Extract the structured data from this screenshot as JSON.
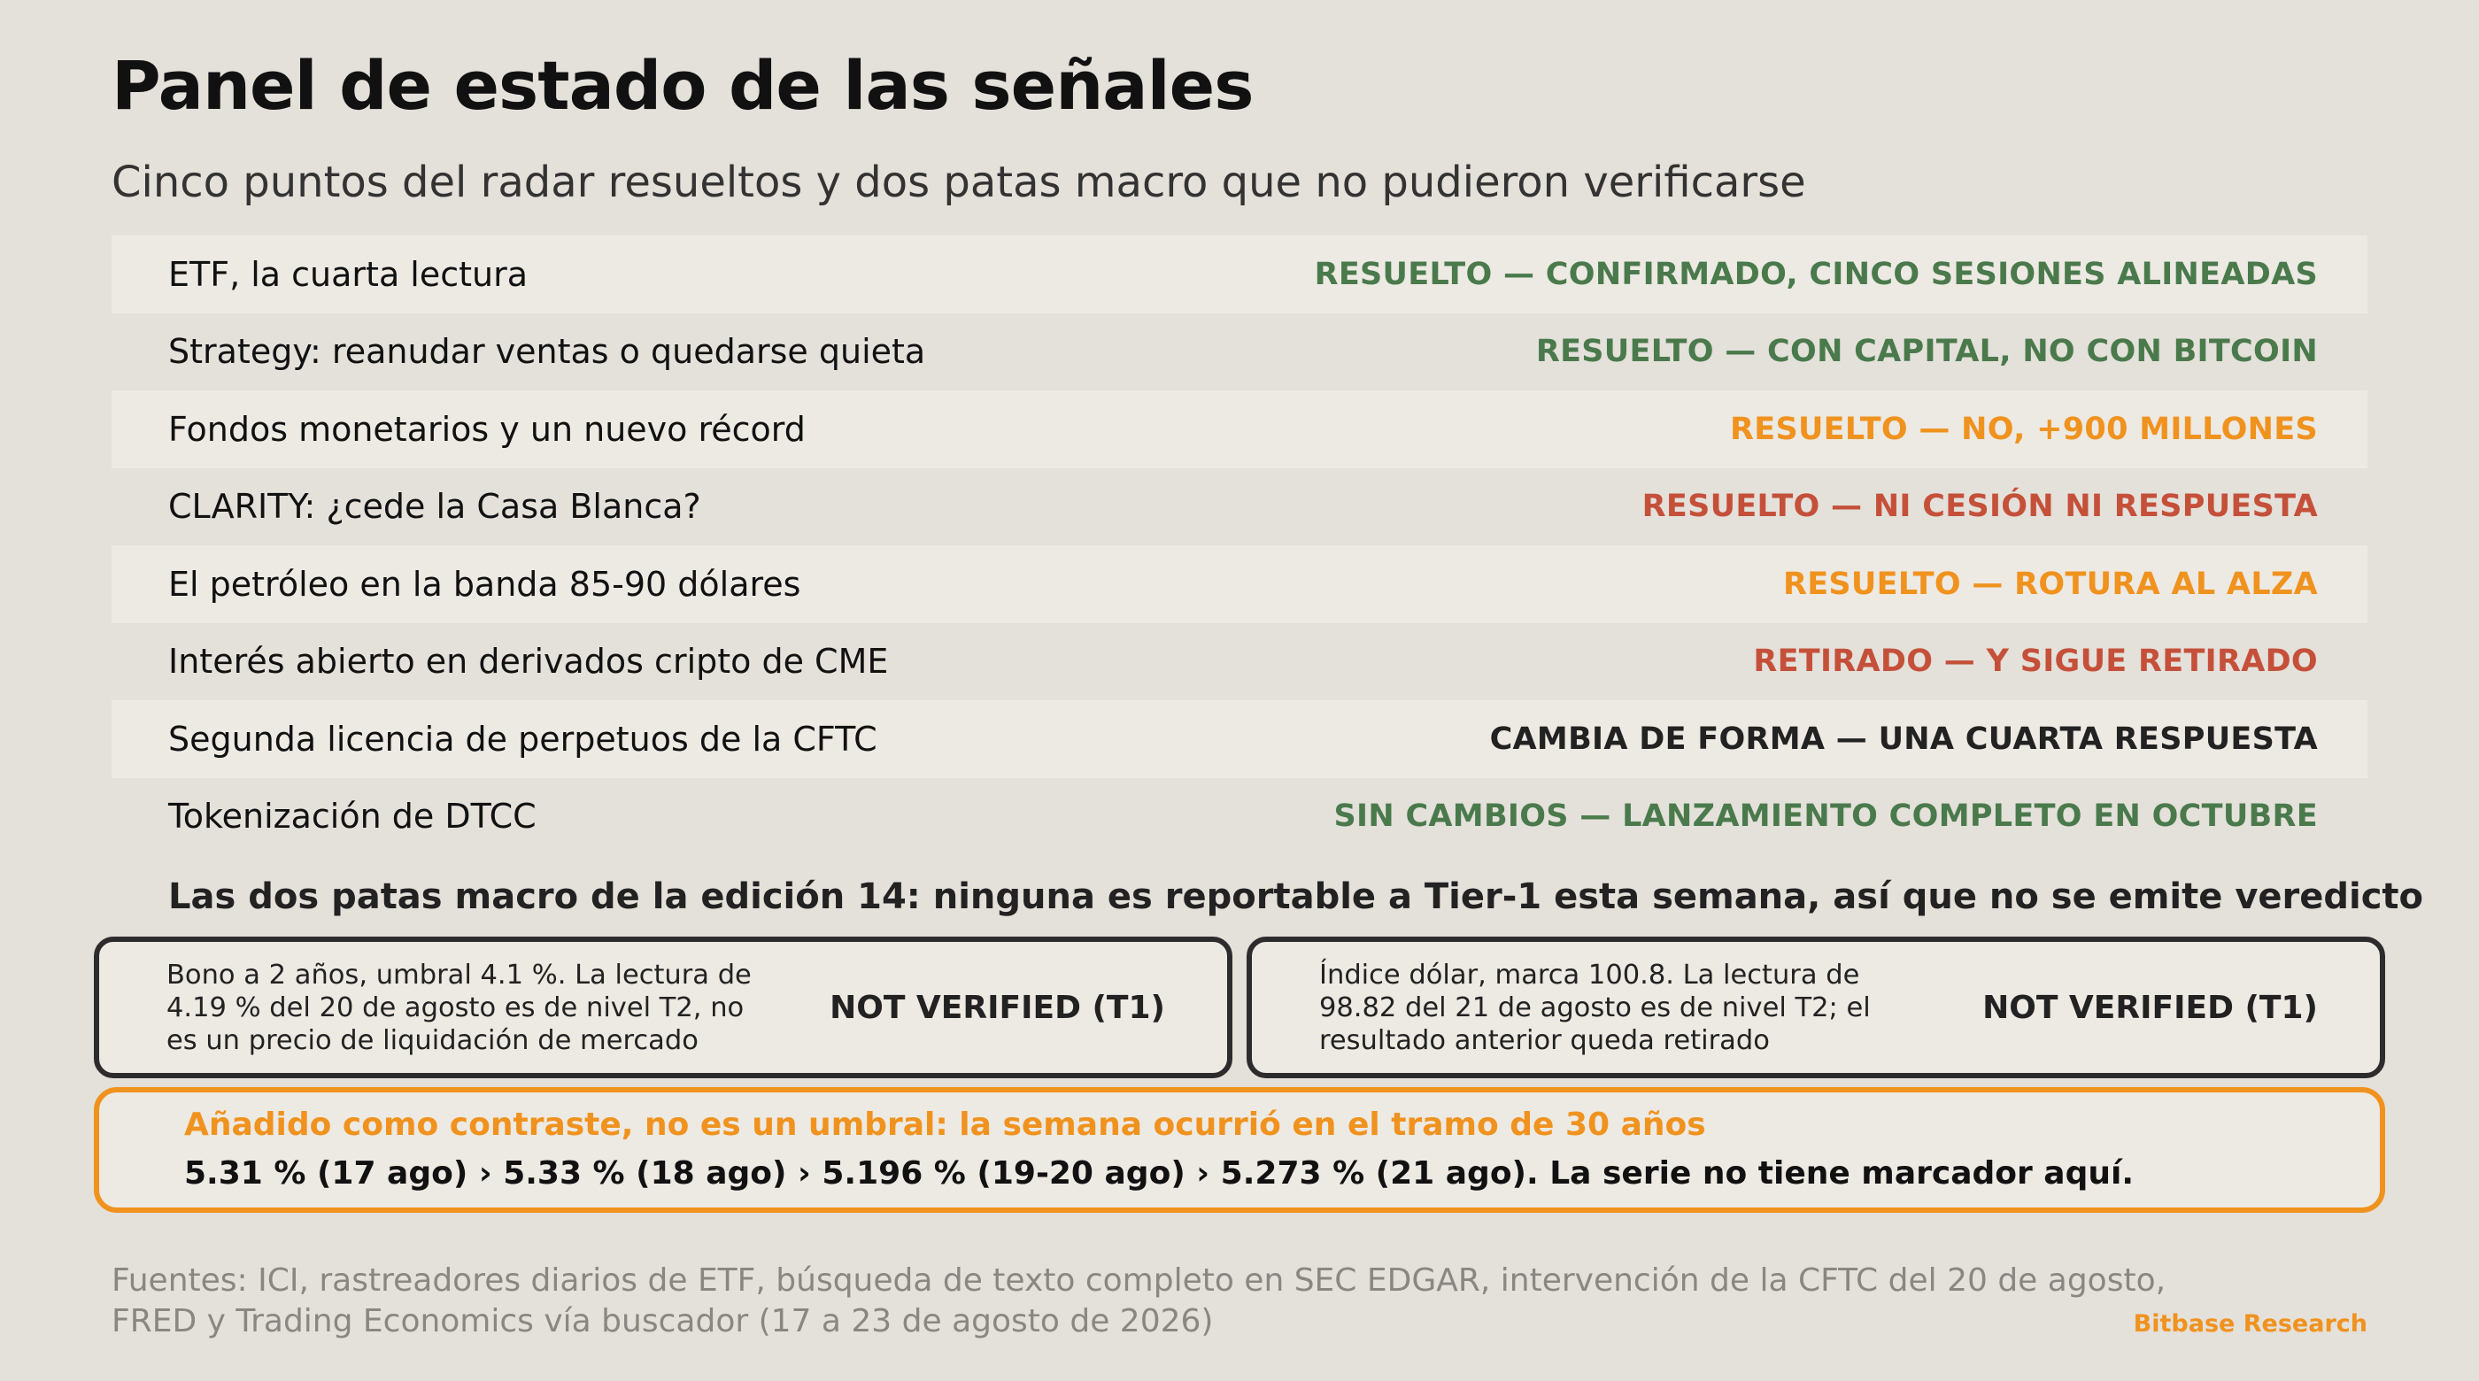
{
  "header": {
    "title": "Panel de estado de las señales",
    "subtitle": "Cinco puntos del radar resueltos y dos patas macro que no pudieron verificarse"
  },
  "colors": {
    "green": "#4a7a4c",
    "orange": "#f0921e",
    "red": "#c5503a",
    "dark": "#222222"
  },
  "signals": [
    {
      "label": "ETF, la cuarta lectura",
      "status": "RESUELTO — CONFIRMADO, CINCO SESIONES ALINEADAS",
      "color": "#4a7a4c"
    },
    {
      "label": "Strategy: reanudar ventas o quedarse quieta",
      "status": "RESUELTO — CON CAPITAL, NO CON BITCOIN",
      "color": "#4a7a4c"
    },
    {
      "label": "Fondos monetarios y un nuevo récord",
      "status": "RESUELTO — NO, +900 MILLONES",
      "color": "#f0921e"
    },
    {
      "label": "CLARITY: ¿cede la Casa Blanca?",
      "status": "RESUELTO — NI CESIÓN NI RESPUESTA",
      "color": "#c5503a"
    },
    {
      "label": "El petróleo en la banda 85-90 dólares",
      "status": "RESUELTO — ROTURA AL ALZA",
      "color": "#f0921e"
    },
    {
      "label": "Interés abierto en derivados cripto de CME",
      "status": "RETIRADO — Y SIGUE RETIRADO",
      "color": "#c5503a"
    },
    {
      "label": "Segunda licencia de perpetuos de la CFTC",
      "status": "CAMBIA DE FORMA — UNA CUARTA RESPUESTA",
      "color": "#222222"
    },
    {
      "label": "Tokenización de DTCC",
      "status": "SIN CAMBIOS — LANZAMIENTO COMPLETO EN OCTUBRE",
      "color": "#4a7a4c"
    }
  ],
  "macro": {
    "heading": "Las dos patas macro de la edición 14: ninguna es reportable a Tier-1 esta semana, así que no se emite veredicto",
    "legs": [
      {
        "description": "Bono a 2 años, umbral 4.1 %. La lectura de 4.19 % del 20 de agosto es de nivel T2, no es un precio de liquidación de mercado",
        "verdict": "NOT VERIFIED (T1)"
      },
      {
        "description": "Índice dólar, marca 100.8. La lectura de 98.82 del 21 de agosto es de nivel T2; el resultado anterior queda retirado",
        "verdict": "NOT VERIFIED (T1)"
      }
    ]
  },
  "contrast": {
    "heading": "Añadido como contraste, no es un umbral: la semana ocurrió en el tramo de 30 años",
    "body": "5.31 % (17 ago) › 5.33 % (18 ago) › 5.196 % (19-20 ago) › 5.273 % (21 ago). La serie no tiene marcador aquí."
  },
  "footer": {
    "sources": "Fuentes: ICI, rastreadores diarios de ETF, búsqueda de texto completo en SEC EDGAR, intervención de la CFTC del 20 de agosto, FRED y Trading Economics vía buscador (17 a 23 de agosto de 2026)",
    "brand": "Bitbase Research"
  }
}
